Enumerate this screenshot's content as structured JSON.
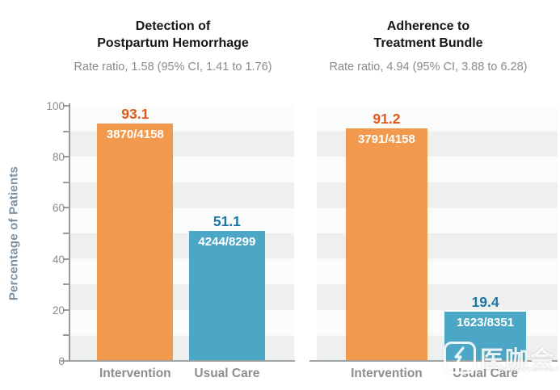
{
  "axis": {
    "ylabel": "Percentage of Patients",
    "tick_values": [
      0,
      20,
      40,
      60,
      80,
      100
    ],
    "minor_tick_step": 10,
    "ylim": [
      0,
      100
    ]
  },
  "chart_data": [
    {
      "type": "bar",
      "title_lines": [
        "Detection of",
        "Postpartum Hemorrhage"
      ],
      "subtitle": "Rate ratio, 1.58 (95% CI, 1.41 to 1.76)",
      "categories": [
        "Intervention",
        "Usual Care"
      ],
      "values": [
        93.1,
        51.1
      ],
      "bar_labels": [
        "93.1",
        "51.1"
      ],
      "fractions": [
        "3870/4158",
        "4244/8299"
      ],
      "ylabel": "Percentage of Patients",
      "xlabel": "",
      "ylim": [
        0,
        100
      ],
      "grid": "alternating-horizontal-bands",
      "legend": "none"
    },
    {
      "type": "bar",
      "title_lines": [
        "Adherence to",
        "Treatment Bundle"
      ],
      "subtitle": "Rate ratio, 4.94 (95% CI, 3.88 to 6.28)",
      "categories": [
        "Intervention",
        "Usual Care"
      ],
      "values": [
        91.2,
        19.4
      ],
      "bar_labels": [
        "91.2",
        "19.4"
      ],
      "fractions": [
        "3791/4158",
        "1623/8351"
      ],
      "ylabel": "Percentage of Patients",
      "xlabel": "",
      "ylim": [
        0,
        100
      ],
      "grid": "alternating-horizontal-bands",
      "legend": "none"
    }
  ],
  "colors": {
    "intervention_bar": "#F2994E",
    "usual_care_bar": "#4BA7C5",
    "intervention_value_label": "#DF5A1F",
    "usual_care_value_label": "#1A76A3",
    "fraction_text": "#FFFFFF",
    "axis_line": "#9B9B9B",
    "tick_label": "#8A8A8A",
    "subtitle_text": "#8A8A8A",
    "title_text": "#161616",
    "ylabel_text": "#7B90A1",
    "band_light": "#FAFBFB",
    "band_dark": "#EEF0F0"
  },
  "watermark": {
    "brand": "医咖会",
    "subtext": "MEDIECOGROUP"
  }
}
